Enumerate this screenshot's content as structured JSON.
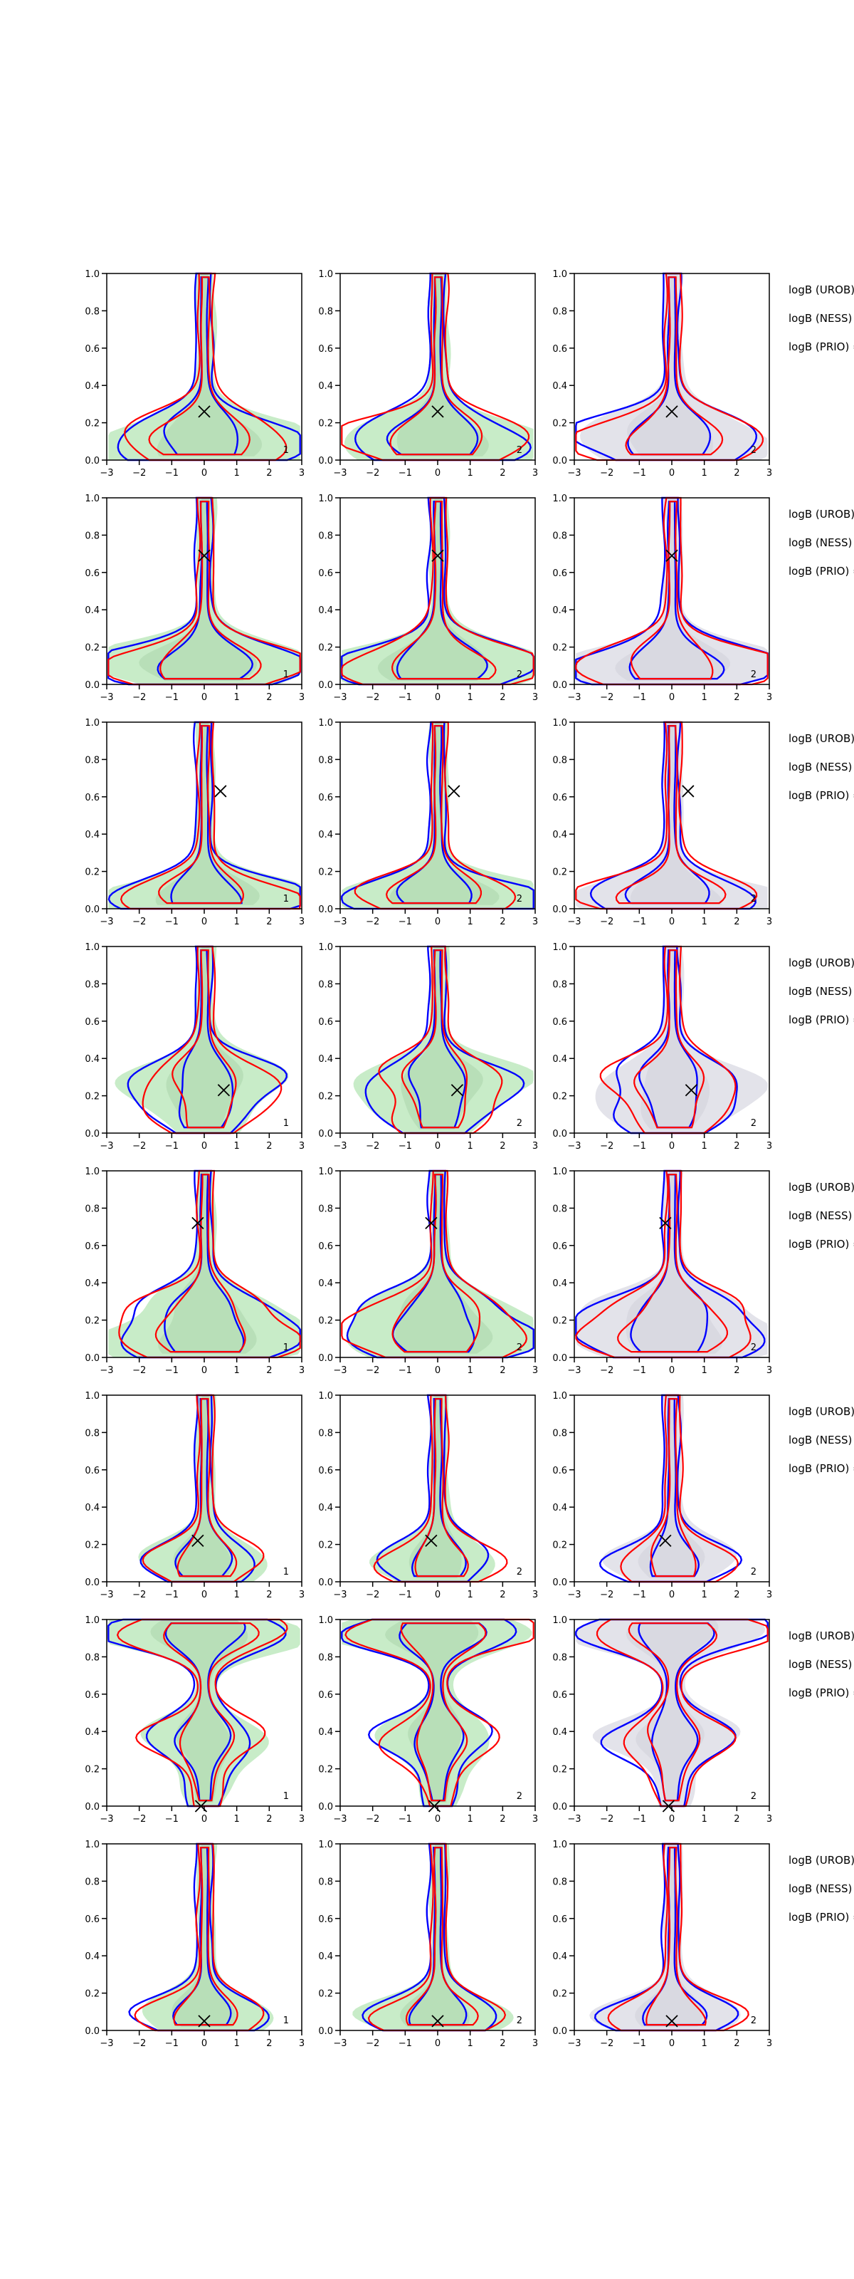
{
  "figure": {
    "xticks": [
      "−3",
      "−2",
      "−1",
      "0",
      "1",
      "2",
      "3"
    ],
    "yticks": [
      "0.0",
      "0.2",
      "0.4",
      "0.6",
      "0.8",
      "1.0"
    ],
    "colors": {
      "blue": "#0000ff",
      "red": "#ff0000",
      "green_fill": "#c8ecc8",
      "grey_fill": "#e3e3ea",
      "axis": "#000000"
    }
  },
  "chart_data": {
    "type": "contour",
    "layout": {
      "rows": 8,
      "cols": 3
    },
    "xlim": [
      -3,
      3
    ],
    "ylim": [
      0,
      1
    ],
    "grid": false,
    "legend": "right side of each row (text clipped)",
    "rows": [
      {
        "marker": [
          0,
          0.26
        ],
        "labels": [
          "logB (UROB)",
          "logB (NESS) =",
          "logB (PRIO) ="
        ],
        "panel_tags": [
          "1",
          "2",
          "2"
        ],
        "shapes": [
          [
            0.25,
            0.1
          ],
          [
            0.6,
            0.2
          ],
          [
            1.1,
            0.14
          ],
          [
            1.3,
            0.03
          ]
        ]
      },
      {
        "marker": [
          0,
          0.69
        ],
        "labels": [
          "logB (UROB)",
          "logB (NESS) =",
          "logB (PRIO) ="
        ],
        "panel_tags": [
          "1",
          "2",
          "2"
        ],
        "shapes": [
          [
            0.3,
            0.2
          ],
          [
            0.7,
            0.15
          ],
          [
            1.0,
            0.1
          ],
          [
            1.2,
            0.05
          ]
        ]
      },
      {
        "marker": [
          0.5,
          0.63
        ],
        "labels": [
          "logB (UROB)",
          "logB (NESS) =",
          "logB (PRIO) ="
        ],
        "panel_tags": [
          "1",
          "2",
          "2"
        ],
        "shapes": [
          [
            0.35,
            0.1
          ],
          [
            0.8,
            0.08
          ],
          [
            1.0,
            0.06
          ],
          [
            0.5,
            0.03
          ]
        ]
      },
      {
        "marker": [
          0.6,
          0.23
        ],
        "labels": [
          "logB (UROB)",
          "logB (NESS) =",
          "logB (PRIO) ="
        ],
        "panel_tags": [
          "1",
          "2",
          "2"
        ],
        "shapes": [
          [
            0.35,
            0.1
          ],
          [
            0.6,
            0.2
          ],
          [
            1.4,
            0.32
          ],
          [
            0.5,
            0.05
          ]
        ]
      },
      {
        "marker": [
          -0.2,
          0.72
        ],
        "labels": [
          "logB (UROB)",
          "logB (NESS) =",
          "logB (PRIO) ="
        ],
        "panel_tags": [
          "1",
          "2",
          "2"
        ],
        "shapes": [
          [
            0.25,
            0.1
          ],
          [
            0.7,
            0.08
          ],
          [
            1.1,
            0.12
          ],
          [
            1.3,
            0.28
          ],
          [
            0.5,
            0.03
          ]
        ]
      },
      {
        "marker": [
          -0.2,
          0.22
        ],
        "labels": [
          "logB (UROB)",
          "logB (NESS) =",
          "logB (PRIO) ="
        ],
        "panel_tags": [
          "1",
          "2",
          "2"
        ],
        "shapes": [
          [
            0.3,
            0.1
          ],
          [
            0.7,
            0.15
          ],
          [
            0.6,
            0.05
          ]
        ]
      },
      {
        "marker": [
          -0.1,
          0.0
        ],
        "labels": [
          "logB (UROB)",
          "logB (NESS) =",
          "logB (PRIO) ="
        ],
        "panel_tags": [
          "1",
          "2",
          "2"
        ],
        "shapes": [
          [
            0.25,
            0.1
          ],
          [
            0.6,
            0.3
          ],
          [
            1.0,
            0.4
          ],
          [
            2.5,
            0.93
          ]
        ]
      },
      {
        "marker": [
          0,
          0.05
        ],
        "labels": [
          "logB (UROB)",
          "logB (NESS) =",
          "logB (PRIO) ="
        ],
        "panel_tags": [
          "1",
          "2",
          "2"
        ],
        "shapes": [
          [
            0.25,
            0.1
          ],
          [
            0.6,
            0.1
          ],
          [
            0.9,
            0.05
          ]
        ]
      }
    ]
  }
}
